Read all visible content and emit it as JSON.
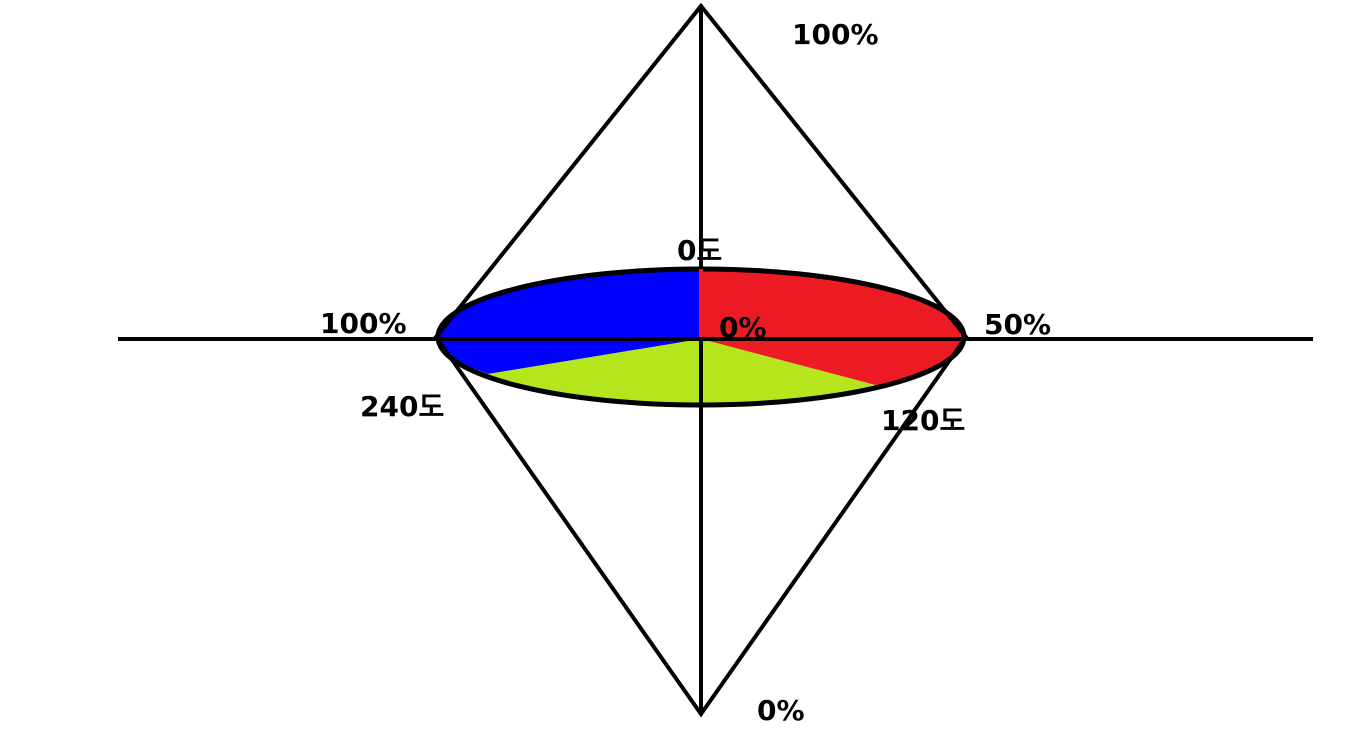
{
  "colors": {
    "red_segment": "#ed1c24",
    "green_segment": "#b5e61d",
    "blue_segment": "#0000ff",
    "lines": "#000000",
    "background": "#ffffff"
  },
  "labels": {
    "top_lightness": "100%",
    "bottom_lightness": "0%",
    "center_saturation": "0%",
    "right_saturation": "50%",
    "left_saturation": "100%",
    "hue_0": "0도",
    "hue_120": "120도",
    "hue_240": "240도"
  }
}
